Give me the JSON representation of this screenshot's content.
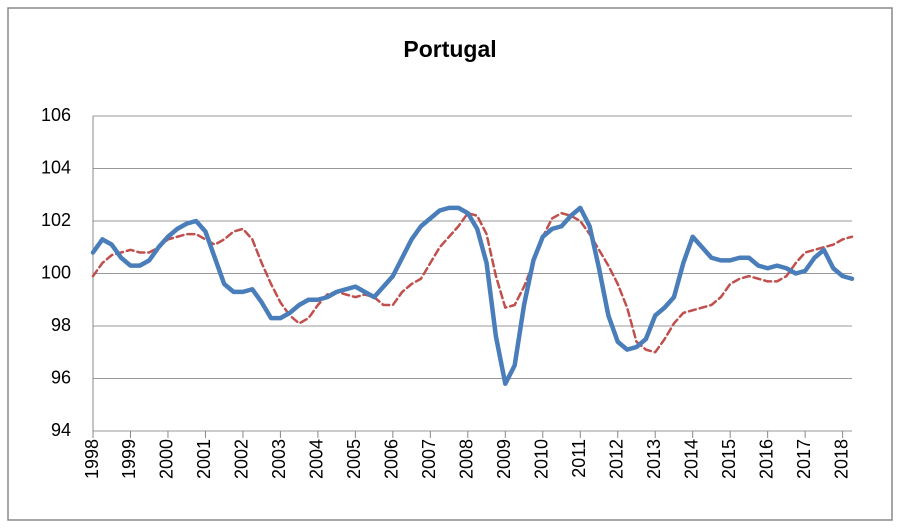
{
  "chart_data": {
    "type": "line",
    "title": "Portugal",
    "x": [
      1998,
      1998.25,
      1998.5,
      1998.75,
      1999,
      1999.25,
      1999.5,
      1999.75,
      2000,
      2000.25,
      2000.5,
      2000.75,
      2001,
      2001.25,
      2001.5,
      2001.75,
      2002,
      2002.25,
      2002.5,
      2002.75,
      2003,
      2003.25,
      2003.5,
      2003.75,
      2004,
      2004.25,
      2004.5,
      2004.75,
      2005,
      2005.25,
      2005.5,
      2005.75,
      2006,
      2006.25,
      2006.5,
      2006.75,
      2007,
      2007.25,
      2007.5,
      2007.75,
      2008,
      2008.25,
      2008.5,
      2008.75,
      2009,
      2009.25,
      2009.5,
      2009.75,
      2010,
      2010.25,
      2010.5,
      2010.75,
      2011,
      2011.25,
      2011.5,
      2011.75,
      2012,
      2012.25,
      2012.5,
      2012.75,
      2013,
      2013.25,
      2013.5,
      2013.75,
      2014,
      2014.25,
      2014.5,
      2014.75,
      2015,
      2015.25,
      2015.5,
      2015.75,
      2016,
      2016.25,
      2016.5,
      2016.75,
      2017,
      2017.25,
      2017.5,
      2017.75,
      2018,
      2018.25
    ],
    "series": [
      {
        "color": "#4a7ebb",
        "dash": false,
        "values": [
          100.8,
          101.3,
          101.1,
          100.6,
          100.3,
          100.3,
          100.5,
          101.0,
          101.4,
          101.7,
          101.9,
          102.0,
          101.6,
          100.6,
          99.6,
          99.3,
          99.3,
          99.4,
          98.9,
          98.3,
          98.3,
          98.5,
          98.8,
          99.0,
          99.0,
          99.1,
          99.3,
          99.4,
          99.5,
          99.3,
          99.1,
          99.5,
          99.9,
          100.6,
          101.3,
          101.8,
          102.1,
          102.4,
          102.5,
          102.5,
          102.3,
          101.7,
          100.4,
          97.6,
          95.8,
          96.5,
          98.8,
          100.5,
          101.4,
          101.7,
          101.8,
          102.2,
          102.5,
          101.8,
          100.2,
          98.4,
          97.4,
          97.1,
          97.2,
          97.5,
          98.4,
          98.7,
          99.1,
          100.4,
          101.4,
          101.0,
          100.6,
          100.5,
          100.5,
          100.6,
          100.6,
          100.3,
          100.2,
          100.3,
          100.2,
          100.0,
          100.1,
          100.6,
          100.9,
          100.2,
          99.9,
          99.8
        ]
      },
      {
        "color": "#c0504d",
        "dash": true,
        "values": [
          99.9,
          100.4,
          100.7,
          100.8,
          100.9,
          100.8,
          100.8,
          101.0,
          101.3,
          101.4,
          101.5,
          101.5,
          101.3,
          101.1,
          101.3,
          101.6,
          101.7,
          101.3,
          100.4,
          99.6,
          98.9,
          98.4,
          98.1,
          98.3,
          98.8,
          99.2,
          99.3,
          99.2,
          99.1,
          99.2,
          99.1,
          98.8,
          98.8,
          99.3,
          99.6,
          99.8,
          100.4,
          101.0,
          101.4,
          101.8,
          102.3,
          102.2,
          101.5,
          99.9,
          98.7,
          98.8,
          99.5,
          100.4,
          101.4,
          102.1,
          102.3,
          102.2,
          102.0,
          101.5,
          100.9,
          100.3,
          99.6,
          98.7,
          97.4,
          97.1,
          97.0,
          97.5,
          98.1,
          98.5,
          98.6,
          98.7,
          98.8,
          99.1,
          99.6,
          99.8,
          99.9,
          99.8,
          99.7,
          99.7,
          99.9,
          100.4,
          100.8,
          100.9,
          101.0,
          101.1,
          101.3,
          101.4
        ]
      }
    ],
    "xlim": [
      1998,
      2018.25
    ],
    "xticks": [
      1998,
      1999,
      2000,
      2001,
      2002,
      2003,
      2004,
      2005,
      2006,
      2007,
      2008,
      2009,
      2010,
      2011,
      2012,
      2013,
      2014,
      2015,
      2016,
      2017,
      2018
    ],
    "ylim": [
      94,
      106
    ],
    "yticks": [
      94,
      96,
      98,
      100,
      102,
      104,
      106
    ],
    "grid": true
  }
}
